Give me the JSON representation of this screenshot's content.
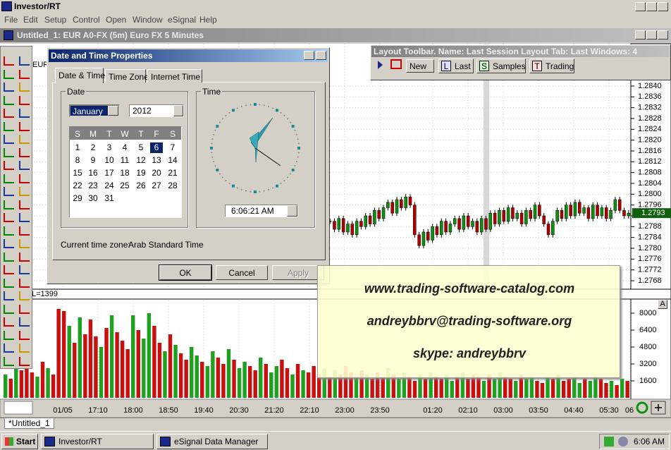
{
  "app": {
    "title": "Investor/RT",
    "menu": [
      "File",
      "Edit",
      "Setup",
      "Control",
      "Open",
      "Window",
      "eSignal",
      "Help"
    ]
  },
  "chart_window": {
    "title": "Untitled_1: EUR A0-FX (5m) Euro FX 5 Minutes",
    "symbol": "EUR",
    "price_labels": [
      "1.2840",
      "1.2836",
      "1.2832",
      "1.2828",
      "1.2824",
      "1.2820",
      "1.2816",
      "1.2812",
      "1.2808",
      "1.2804",
      "1.2800",
      "1.2796",
      "1.2792",
      "1.2788",
      "1.2784",
      "1.2780",
      "1.2776",
      "1.2772",
      "1.2768"
    ],
    "current_price": "1.2793",
    "volume_label": "L=1399",
    "volume_labels": [
      "8000",
      "6400",
      "4800",
      "3200",
      "1600"
    ],
    "scale_button": "A",
    "time_labels": [
      "01/05",
      "17:10",
      "18:00",
      "18:50",
      "19:40",
      "20:30",
      "21:20",
      "22:10",
      "23:00",
      "23:50",
      "01:20",
      "02:10",
      "03:00",
      "03:50",
      "04:40",
      "05:30",
      "06"
    ],
    "candles_close": [
      1.279,
      1.2787,
      1.2791,
      1.2786,
      1.2789,
      1.2785,
      1.279,
      1.2788,
      1.2792,
      1.2789,
      1.2794,
      1.2791,
      1.2795,
      1.2797,
      1.2793,
      1.2798,
      1.2795,
      1.2799,
      1.2796,
      1.2785,
      1.2781,
      1.2786,
      1.2783,
      1.2788,
      1.2785,
      1.279,
      1.2786,
      1.2789,
      1.2791,
      1.2787,
      1.2792,
      1.2788,
      1.279,
      1.2786,
      1.2791,
      1.2787,
      1.2793,
      1.2789,
      1.2794,
      1.279,
      1.2795,
      1.2791,
      1.2793,
      1.2789,
      1.2794,
      1.2791,
      1.2796,
      1.2792,
      1.2789,
      1.2785,
      1.279,
      1.2794,
      1.2791,
      1.2796,
      1.2792,
      1.2797,
      1.2793,
      1.2795,
      1.2791,
      1.2796,
      1.2792,
      1.2795,
      1.2791,
      1.2794,
      1.2798,
      1.2794,
      1.2792,
      1.2793
    ],
    "volume": [
      2200,
      1800,
      3000,
      2600,
      3800,
      2400,
      2000,
      3400,
      2800,
      2200,
      8400,
      8200,
      6800,
      5200,
      7600,
      6000,
      7400,
      5800,
      4800,
      6600,
      7800,
      6200,
      5400,
      4600,
      7800,
      6400,
      5600,
      8000,
      6800,
      5200,
      4400,
      6000,
      5000,
      4200,
      3600,
      4800,
      4000,
      3400,
      3000,
      4400,
      3800,
      3200,
      4600,
      3600,
      2800,
      3400,
      3000,
      2600,
      3800,
      3200,
      2400,
      3000,
      3600,
      2800,
      2200,
      3200,
      2600,
      2400,
      3000,
      2200,
      2800,
      2000,
      2600,
      2200,
      3000,
      2400,
      2000,
      2600,
      2200,
      1800,
      2400,
      2000,
      2800,
      2200,
      1800,
      2400,
      2000,
      1600,
      2200,
      1800,
      2400,
      2000,
      1800,
      2200,
      1600,
      2000,
      2400,
      1800,
      2200,
      2000,
      1600,
      2200,
      1800,
      2400,
      2000,
      1800,
      1600,
      2200,
      1800,
      2000,
      1600,
      1400,
      2000,
      1800,
      2200,
      1600,
      1800,
      2000,
      1400,
      1800,
      1600,
      2000,
      1800,
      1400,
      1600,
      1200,
      1800,
      1600
    ]
  },
  "dialog": {
    "title": "Date and Time Properties",
    "tabs": [
      "Date & Time",
      "Time Zone",
      "Internet Time"
    ],
    "date_group": "Date",
    "month": "January",
    "year": "2012",
    "weekdays": [
      "S",
      "M",
      "T",
      "W",
      "T",
      "F",
      "S"
    ],
    "weeks": [
      [
        1,
        2,
        3,
        4,
        5,
        6,
        7
      ],
      [
        8,
        9,
        10,
        11,
        12,
        13,
        14
      ],
      [
        15,
        16,
        17,
        18,
        19,
        20,
        21
      ],
      [
        22,
        23,
        24,
        25,
        26,
        27,
        28
      ],
      [
        29,
        30,
        31
      ]
    ],
    "selected_day": 6,
    "time_group": "Time",
    "time": "6:06:21 AM",
    "timezone_label": "Current time zone:",
    "timezone": "Arab Standard Time",
    "buttons": [
      "OK",
      "Cancel",
      "Apply"
    ]
  },
  "layout_toolbar": {
    "title": "Layout Toolbar. Name: Last Session Layout  Tab: Last  Windows: 4",
    "new": "New",
    "tabs": [
      {
        "key": "L",
        "label": "Last"
      },
      {
        "key": "S",
        "label": "Samples"
      },
      {
        "key": "T",
        "label": "Trading"
      }
    ]
  },
  "watermark": [
    "www.trading-software-catalog.com",
    "andreybbrv@trading-software.org",
    "skype: andreybbrv"
  ],
  "window_tabs": [
    "*Untitled_1"
  ],
  "taskbar": {
    "start": "Start",
    "items": [
      "Investor/RT",
      "eSignal Data Manager"
    ],
    "clock": "6:06 AM"
  }
}
